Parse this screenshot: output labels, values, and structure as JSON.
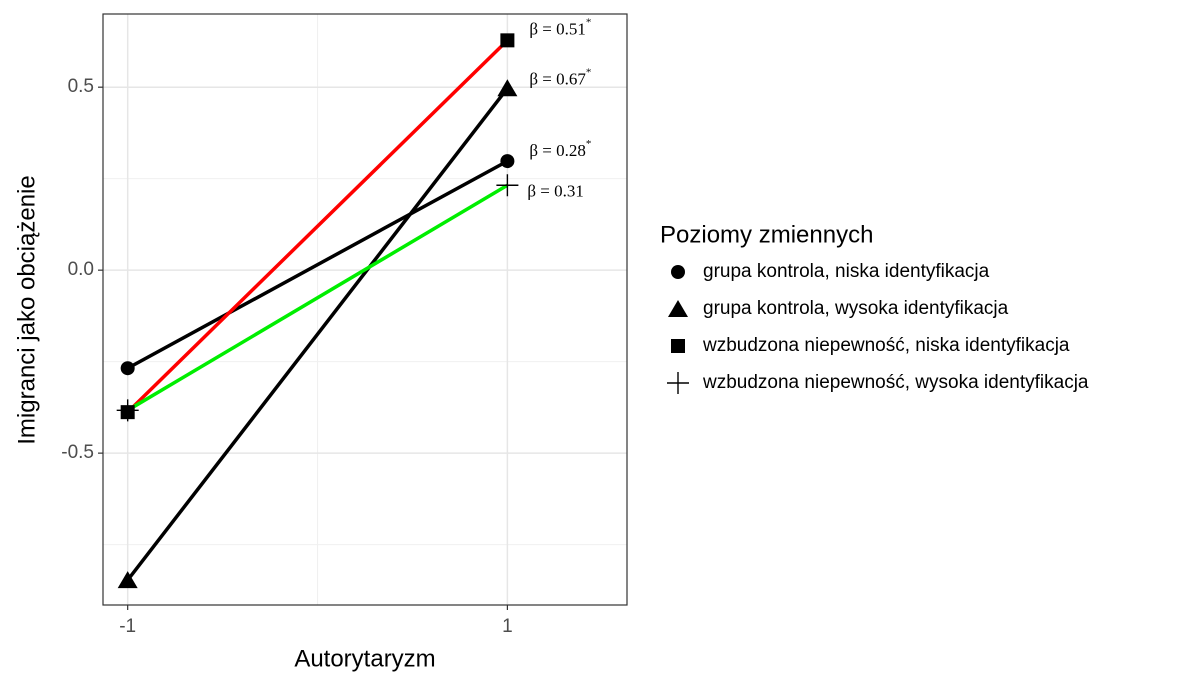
{
  "chart_data": {
    "type": "line",
    "x_label": "Autorytaryzm",
    "y_label": "Imigranci jako obciążenie",
    "x": [
      -1,
      1
    ],
    "xlim": [
      -1.13,
      1.63
    ],
    "xticks": [
      -1,
      1
    ],
    "x_minor_grid": [
      0
    ],
    "ylim": [
      -0.915,
      0.7
    ],
    "yticks": [
      -0.5,
      {
        "value": 0.0,
        "label": "0.0"
      },
      0.5
    ],
    "y_minor_grid": [
      -0.75,
      -0.25,
      0.25
    ],
    "grid": true,
    "legend_title": "Poziomy zmiennych",
    "legend": "right",
    "series": [
      {
        "name": "grupa kontrola, niska identyfikacja",
        "color": "#000000",
        "marker": "circle",
        "values": [
          -0.268,
          0.298
        ],
        "annotation": "β = 0.28",
        "annotation_sup": "*"
      },
      {
        "name": "grupa kontrola, wysoka identyfikacja",
        "color": "#000000",
        "marker": "triangle",
        "values": [
          -0.847,
          0.497
        ],
        "annotation": "β = 0.67",
        "annotation_sup": "*"
      },
      {
        "name": "wzbudzona niepewność, niska identyfikacja",
        "color": "#ff0000",
        "marker": "square",
        "values": [
          -0.388,
          0.628
        ],
        "annotation": "β = 0.51",
        "annotation_sup": "*"
      },
      {
        "name": "wzbudzona niepewność, wysoka identyfikacja",
        "color": "#00ee00",
        "marker": "plus",
        "values": [
          -0.383,
          0.232
        ],
        "annotation": "β = 0.31"
      }
    ]
  }
}
